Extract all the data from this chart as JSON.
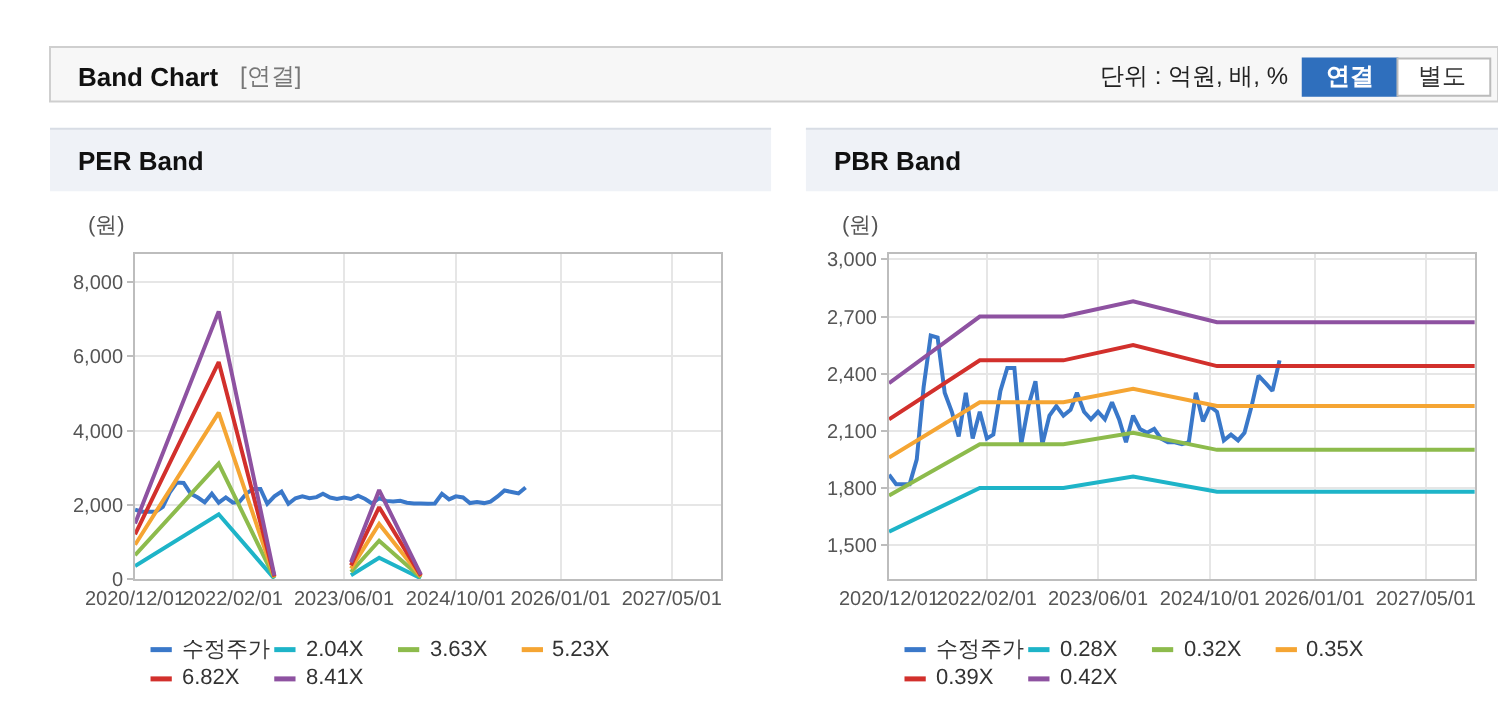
{
  "chart_data": [
    {
      "type": "line",
      "title": "PER Band",
      "ylabel": "(원)",
      "annotations": [
        "Band Chart",
        "[연결]",
        "단위 : 억원, 배, %",
        "연결",
        "별도"
      ],
      "xlim": [
        "2020-12-01",
        "2027-12-01"
      ],
      "xticks": [
        {
          "value": "2020-12-01",
          "label": "2020/12/01"
        },
        {
          "value": "2022-02-01",
          "label": "2022/02/01"
        },
        {
          "value": "2023-06-01",
          "label": "2023/06/01"
        },
        {
          "value": "2024-10-01",
          "label": "2024/10/01"
        },
        {
          "value": "2026-01-01",
          "label": "2026/01/01"
        },
        {
          "value": "2027-05-01",
          "label": "2027/05/01"
        }
      ],
      "ylim": [
        0,
        8750
      ],
      "yticks": [
        0,
        {
          "value": 2000,
          "label": "2,000"
        },
        {
          "value": 4000,
          "label": "4,000"
        },
        {
          "value": 6000,
          "label": "6,000"
        },
        {
          "value": 8000,
          "label": "8,000"
        }
      ],
      "grid": true,
      "legend": "bottom",
      "marker": "none",
      "line_style": "solid",
      "series": [
        {
          "name": "수정주가",
          "color": "#3a78c9",
          "x": [
            "2020-12",
            "2021-01",
            "2021-03",
            "2021-04",
            "2021-05",
            "2021-06",
            "2021-07",
            "2021-08",
            "2021-09",
            "2021-10",
            "2021-11",
            "2021-12",
            "2022-01",
            "2022-02",
            "2022-03",
            "2022-04",
            "2022-05",
            "2022-06",
            "2022-07",
            "2022-08",
            "2022-09",
            "2022-10",
            "2022-11",
            "2022-12",
            "2023-01",
            "2023-02",
            "2023-03",
            "2023-04",
            "2023-05",
            "2023-06",
            "2023-07",
            "2023-08",
            "2023-09",
            "2023-10",
            "2023-11",
            "2023-12",
            "2024-01",
            "2024-02",
            "2024-03",
            "2024-04",
            "2024-05",
            "2024-06",
            "2024-07",
            "2024-08",
            "2024-09",
            "2024-10",
            "2024-11",
            "2024-12",
            "2025-01",
            "2025-02",
            "2025-03",
            "2025-04",
            "2025-05",
            "2025-06",
            "2025-07",
            "2025-08"
          ],
          "values": [
            1870,
            1820,
            1820,
            1950,
            2330,
            2600,
            2590,
            2300,
            2200,
            2070,
            2300,
            2060,
            2200,
            2060,
            2080,
            2310,
            2430,
            2430,
            2030,
            2230,
            2360,
            2030,
            2180,
            2230,
            2180,
            2210,
            2300,
            2200,
            2160,
            2200,
            2160,
            2250,
            2160,
            2040,
            2180,
            2110,
            2090,
            2110,
            2060,
            2040,
            2040,
            2030,
            2040,
            2300,
            2150,
            2230,
            2200,
            2050,
            2080,
            2050,
            2090,
            2230,
            2390,
            2350,
            2310,
            2470
          ]
        },
        {
          "name": "2.04X",
          "color": "#1eb4c8",
          "x": [
            "2020-12",
            "2021-12",
            "2022-08",
            "2023-01",
            "2023-07",
            "2023-11",
            "2024-05"
          ],
          "values": [
            360,
            1750,
            20,
            null,
            110,
            580,
            30
          ]
        },
        {
          "name": "3.63X",
          "color": "#8dbb4c",
          "x": [
            "2020-12",
            "2021-12",
            "2022-08",
            "2023-01",
            "2023-07",
            "2023-11",
            "2024-05"
          ],
          "values": [
            650,
            3110,
            40,
            null,
            200,
            1040,
            50
          ]
        },
        {
          "name": "5.23X",
          "color": "#f5a533",
          "x": [
            "2020-12",
            "2021-12",
            "2022-08",
            "2023-01",
            "2023-07",
            "2023-11",
            "2024-05"
          ],
          "values": [
            930,
            4480,
            60,
            null,
            290,
            1490,
            80
          ]
        },
        {
          "name": "6.82X",
          "color": "#d2302c",
          "x": [
            "2020-12",
            "2021-12",
            "2022-08",
            "2023-01",
            "2023-07",
            "2023-11",
            "2024-05"
          ],
          "values": [
            1210,
            5840,
            80,
            null,
            380,
            1940,
            100
          ]
        },
        {
          "name": "8.41X",
          "color": "#8e52a1",
          "x": [
            "2020-12",
            "2021-12",
            "2022-08",
            "2023-01",
            "2023-07",
            "2023-11",
            "2024-05"
          ],
          "values": [
            1500,
            7200,
            100,
            null,
            460,
            2400,
            130
          ]
        }
      ]
    },
    {
      "type": "line",
      "title": "PBR Band",
      "ylabel": "(원)",
      "xlim": [
        "2020-12-01",
        "2027-12-01"
      ],
      "xticks": [
        {
          "value": "2020-12-01",
          "label": "2020/12/01"
        },
        {
          "value": "2022-02-01",
          "label": "2022/02/01"
        },
        {
          "value": "2023-06-01",
          "label": "2023/06/01"
        },
        {
          "value": "2024-10-01",
          "label": "2024/10/01"
        },
        {
          "value": "2026-01-01",
          "label": "2026/01/01"
        },
        {
          "value": "2027-05-01",
          "label": "2027/05/01"
        }
      ],
      "ylim": [
        1320,
        3030
      ],
      "yticks": [
        {
          "value": 1500,
          "label": "1,500"
        },
        {
          "value": 1800,
          "label": "1,800"
        },
        {
          "value": 2100,
          "label": "2,100"
        },
        {
          "value": 2400,
          "label": "2,400"
        },
        {
          "value": 2700,
          "label": "2,700"
        },
        {
          "value": 3000,
          "label": "3,000"
        }
      ],
      "grid": true,
      "legend": "bottom",
      "marker": "none",
      "line_style": "solid",
      "series": [
        {
          "name": "수정주가",
          "color": "#3a78c9",
          "x": [
            "2020-12",
            "2021-01",
            "2021-03",
            "2021-04",
            "2021-05",
            "2021-06",
            "2021-07",
            "2021-08",
            "2021-09",
            "2021-10",
            "2021-11",
            "2021-12",
            "2022-01",
            "2022-02",
            "2022-03",
            "2022-04",
            "2022-05",
            "2022-06",
            "2022-07",
            "2022-08",
            "2022-09",
            "2022-10",
            "2022-11",
            "2022-12",
            "2023-01",
            "2023-02",
            "2023-03",
            "2023-04",
            "2023-05",
            "2023-06",
            "2023-07",
            "2023-08",
            "2023-09",
            "2023-10",
            "2023-11",
            "2023-12",
            "2024-01",
            "2024-02",
            "2024-03",
            "2024-04",
            "2024-05",
            "2024-06",
            "2024-07",
            "2024-08",
            "2024-09",
            "2024-10",
            "2024-11",
            "2024-12",
            "2025-01",
            "2025-02",
            "2025-03",
            "2025-04",
            "2025-05",
            "2025-06",
            "2025-07",
            "2025-08"
          ],
          "values": [
            1870,
            1820,
            1820,
            1950,
            2330,
            2600,
            2590,
            2300,
            2200,
            2070,
            2300,
            2060,
            2200,
            2060,
            2080,
            2310,
            2430,
            2430,
            2030,
            2230,
            2360,
            2030,
            2180,
            2230,
            2180,
            2210,
            2300,
            2200,
            2160,
            2200,
            2160,
            2250,
            2160,
            2040,
            2180,
            2110,
            2090,
            2110,
            2060,
            2040,
            2040,
            2030,
            2040,
            2300,
            2150,
            2230,
            2200,
            2050,
            2080,
            2050,
            2090,
            2230,
            2390,
            2350,
            2310,
            2470
          ]
        },
        {
          "name": "0.28X",
          "color": "#1eb4c8",
          "x": [
            "2020-12",
            "2022-01",
            "2023-01",
            "2023-11",
            "2024-11",
            "2027-12"
          ],
          "values": [
            1570,
            1800,
            1800,
            1860,
            1780,
            1780
          ]
        },
        {
          "name": "0.32X",
          "color": "#8dbb4c",
          "x": [
            "2020-12",
            "2022-01",
            "2023-01",
            "2023-11",
            "2024-11",
            "2027-12"
          ],
          "values": [
            1760,
            2030,
            2030,
            2090,
            2000,
            2000
          ]
        },
        {
          "name": "0.35X",
          "color": "#f5a533",
          "x": [
            "2020-12",
            "2022-01",
            "2023-01",
            "2023-11",
            "2024-11",
            "2027-12"
          ],
          "values": [
            1960,
            2250,
            2250,
            2320,
            2230,
            2230
          ]
        },
        {
          "name": "0.39X",
          "color": "#d2302c",
          "x": [
            "2020-12",
            "2022-01",
            "2023-01",
            "2023-11",
            "2024-11",
            "2027-12"
          ],
          "values": [
            2160,
            2470,
            2470,
            2550,
            2440,
            2440
          ]
        },
        {
          "name": "0.42X",
          "color": "#8e52a1",
          "x": [
            "2020-12",
            "2022-01",
            "2023-01",
            "2023-11",
            "2024-11",
            "2027-12"
          ],
          "values": [
            2350,
            2700,
            2700,
            2780,
            2670,
            2670
          ]
        }
      ]
    }
  ]
}
